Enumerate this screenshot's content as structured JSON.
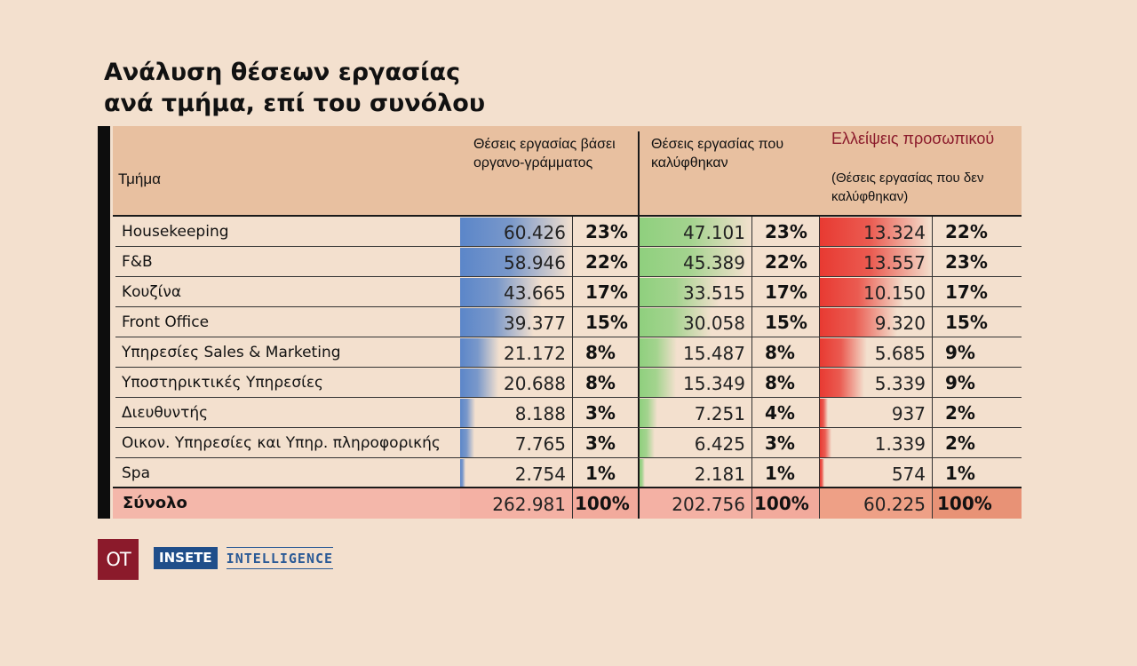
{
  "title_line1": "Ανάλυση θέσεων εργασίας",
  "title_line2": "ανά τμήμα, επί του συνόλου",
  "colors": {
    "background": "#f3e0ce",
    "header": "#e8c0a0",
    "total_row": "#f2aa9c",
    "planned_bar": "#5b86c9",
    "filled_bar": "#8fd07e",
    "shortage_bar": "#e83a32",
    "shortage_title": "#8b1a2b"
  },
  "headers": {
    "department": "Τμήμα",
    "planned": "Θέσεις εργασίας βάσει οργανο-γράμματος",
    "filled": "Θέσεις εργασίας που καλύφθηκαν",
    "shortage_title": "Ελλείψεις προσωπικού",
    "shortage_sub": "(Θέσεις εργασίας που δεν καλύφθηκαν)"
  },
  "chart_data": {
    "type": "table",
    "columns": [
      "Τμήμα",
      "Θέσεις εργασίας βάσει οργανογράμματος",
      "%",
      "Θέσεις εργασίας που καλύφθηκαν",
      "%",
      "Ελλείψεις προσωπικού (Θέσεις εργασίας που δεν καλύφθηκαν)",
      "%"
    ],
    "rows": [
      {
        "department": "Housekeeping",
        "planned": 60426,
        "planned_label": "60.426",
        "planned_pct": "23%",
        "filled": 47101,
        "filled_label": "47.101",
        "filled_pct": "23%",
        "shortage": 13324,
        "shortage_label": "13.324",
        "shortage_pct": "22%"
      },
      {
        "department": "F&B",
        "planned": 58946,
        "planned_label": "58.946",
        "planned_pct": "22%",
        "filled": 45389,
        "filled_label": "45.389",
        "filled_pct": "22%",
        "shortage": 13557,
        "shortage_label": "13.557",
        "shortage_pct": "23%"
      },
      {
        "department": "Κουζίνα",
        "planned": 43665,
        "planned_label": "43.665",
        "planned_pct": "17%",
        "filled": 33515,
        "filled_label": "33.515",
        "filled_pct": "17%",
        "shortage": 10150,
        "shortage_label": "10.150",
        "shortage_pct": "17%"
      },
      {
        "department": "Front Office",
        "planned": 39377,
        "planned_label": "39.377",
        "planned_pct": "15%",
        "filled": 30058,
        "filled_label": "30.058",
        "filled_pct": "15%",
        "shortage": 9320,
        "shortage_label": "9.320",
        "shortage_pct": "15%"
      },
      {
        "department": "Υπηρεσίες Sales & Marketing",
        "planned": 21172,
        "planned_label": "21.172",
        "planned_pct": "8%",
        "filled": 15487,
        "filled_label": "15.487",
        "filled_pct": "8%",
        "shortage": 5685,
        "shortage_label": "5.685",
        "shortage_pct": "9%"
      },
      {
        "department": "Υποστηρικτικές Υπηρεσίες",
        "planned": 20688,
        "planned_label": "20.688",
        "planned_pct": "8%",
        "filled": 15349,
        "filled_label": "15.349",
        "filled_pct": "8%",
        "shortage": 5339,
        "shortage_label": "5.339",
        "shortage_pct": "9%"
      },
      {
        "department": "Διευθυντής",
        "planned": 8188,
        "planned_label": "8.188",
        "planned_pct": "3%",
        "filled": 7251,
        "filled_label": "7.251",
        "filled_pct": "4%",
        "shortage": 937,
        "shortage_label": "937",
        "shortage_pct": "2%"
      },
      {
        "department": "Οικον. Υπηρεσίες και Υπηρ. πληροφορικής",
        "planned": 7765,
        "planned_label": "7.765",
        "planned_pct": "3%",
        "filled": 6425,
        "filled_label": "6.425",
        "filled_pct": "3%",
        "shortage": 1339,
        "shortage_label": "1.339",
        "shortage_pct": "2%"
      },
      {
        "department": "Spa",
        "planned": 2754,
        "planned_label": "2.754",
        "planned_pct": "1%",
        "filled": 2181,
        "filled_label": "2.181",
        "filled_pct": "1%",
        "shortage": 574,
        "shortage_label": "574",
        "shortage_pct": "1%"
      }
    ],
    "total": {
      "label": "Σύνολο",
      "planned": "262.981",
      "planned_pct": "100%",
      "filled": "202.756",
      "filled_pct": "100%",
      "shortage": "60.225",
      "shortage_pct": "100%"
    }
  },
  "logos": {
    "ot": "OT",
    "insete": "INSETE",
    "intelligence": "INTELLIGENCE"
  }
}
